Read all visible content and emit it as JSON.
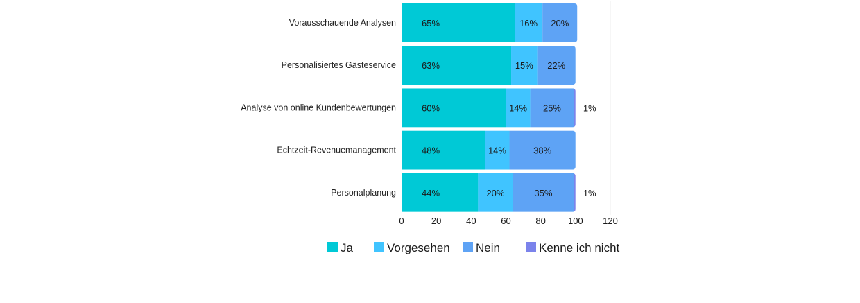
{
  "colors": {
    "ja": "#00c9d6",
    "vorgesehen": "#40c4ff",
    "nein": "#5ea3f5",
    "kenne": "#7b83eb",
    "gridline": "#eeeeee",
    "text": "#1a1a1a"
  },
  "chart_data": {
    "type": "bar",
    "orientation": "horizontal",
    "stacked": true,
    "title": "",
    "xlabel": "",
    "ylabel": "",
    "xlim": [
      0,
      120
    ],
    "xticks": [
      0,
      20,
      40,
      60,
      80,
      100,
      120
    ],
    "grid": false,
    "legend_position": "bottom",
    "categories": [
      "Vorausschauende Analysen",
      "Personalisiertes Gästeservice",
      "Analyse von online Kundenbewertungen",
      "Echtzeit-Revenuemanagement",
      "Personalplanung"
    ],
    "series": [
      {
        "name": "Ja",
        "color_key": "ja",
        "values": [
          65,
          63,
          60,
          48,
          44
        ]
      },
      {
        "name": "Vorgesehen",
        "color_key": "vorgesehen",
        "values": [
          16,
          15,
          14,
          14,
          20
        ]
      },
      {
        "name": "Nein",
        "color_key": "nein",
        "values": [
          20,
          22,
          25,
          38,
          35
        ]
      },
      {
        "name": "Kenne ich nicht",
        "color_key": "kenne",
        "values": [
          0,
          0,
          1,
          0,
          1
        ]
      }
    ],
    "labels": [
      [
        "65%",
        "16%",
        "20%",
        ""
      ],
      [
        "63%",
        "15%",
        "22%",
        ""
      ],
      [
        "60%",
        "14%",
        "25%",
        "1%"
      ],
      [
        "48%",
        "14%",
        "38%",
        ""
      ],
      [
        "44%",
        "20%",
        "35%",
        "1%"
      ]
    ]
  }
}
